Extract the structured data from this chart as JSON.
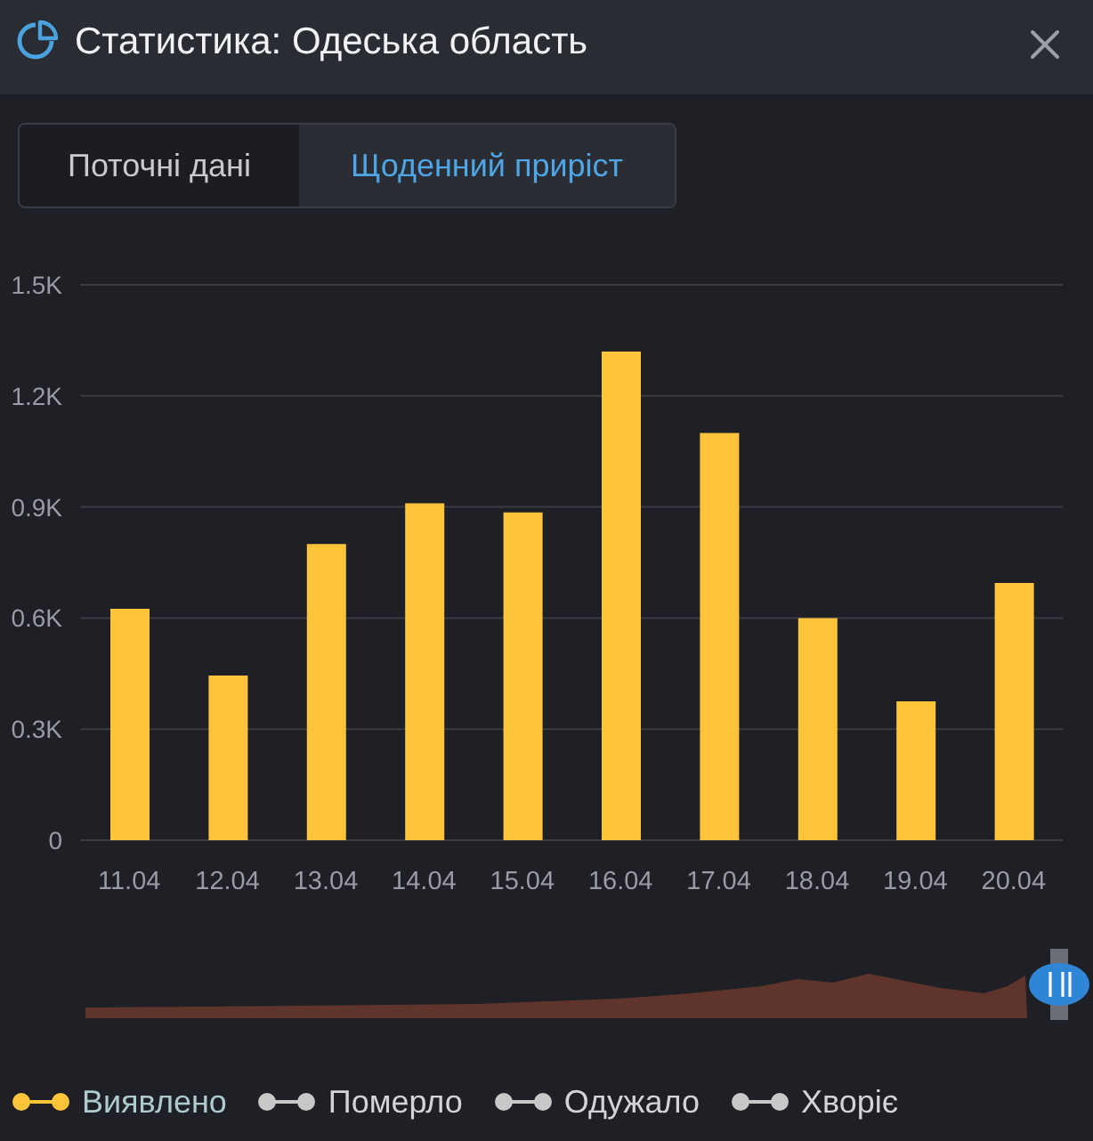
{
  "chart_data": {
    "type": "bar",
    "title": "Статистика: Одеська область",
    "annotations": [
      "Поточні дані",
      "Щоденний приріст"
    ],
    "categories": [
      "11.04",
      "12.04",
      "13.04",
      "14.04",
      "15.04",
      "16.04",
      "17.04",
      "18.04",
      "19.04",
      "20.04"
    ],
    "series": [
      {
        "name": "Виявлено",
        "color": "#ffc53a",
        "values": [
          625,
          445,
          800,
          910,
          885,
          1320,
          1100,
          600,
          375,
          695
        ]
      },
      {
        "name": "Померло",
        "color": "#c8c8c8",
        "values": [
          null,
          null,
          null,
          null,
          null,
          null,
          null,
          null,
          null,
          null
        ]
      },
      {
        "name": "Одужало",
        "color": "#c8c8c8",
        "values": [
          null,
          null,
          null,
          null,
          null,
          null,
          null,
          null,
          null,
          null
        ]
      },
      {
        "name": "Хворіє",
        "color": "#c8c8c8",
        "values": [
          null,
          null,
          null,
          null,
          null,
          null,
          null,
          null,
          null,
          null
        ]
      }
    ],
    "ylim": [
      0,
      1500
    ],
    "yticks": [
      0,
      {
        "value": 300,
        "label": "0.3K"
      },
      {
        "value": 600,
        "label": "0.6K"
      },
      {
        "value": 900,
        "label": "0.9K"
      },
      {
        "value": 1200,
        "label": "1.2K"
      },
      {
        "value": 1500,
        "label": "1.5K"
      }
    ],
    "grid": "y",
    "legend": "bottom"
  }
}
